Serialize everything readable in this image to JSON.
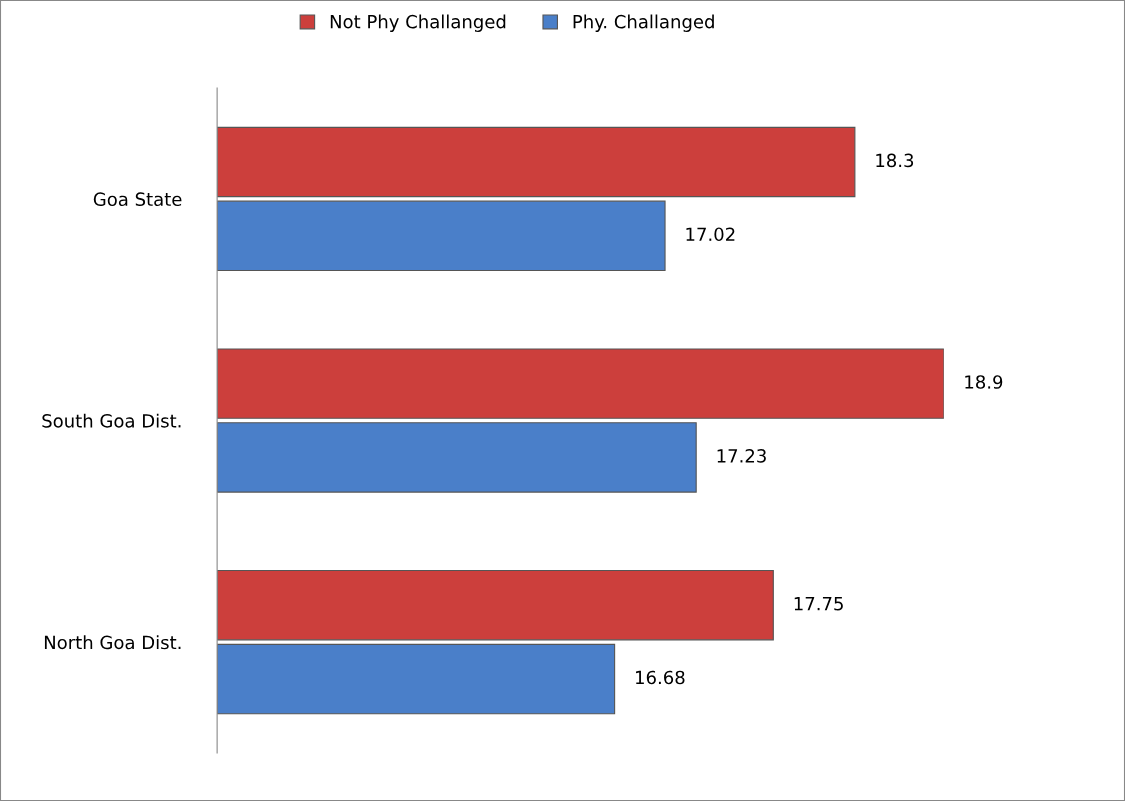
{
  "chart_data": {
    "type": "bar",
    "orientation": "horizontal",
    "categories": [
      "Goa State",
      "South Goa Dist.",
      "North Goa Dist."
    ],
    "series": [
      {
        "name": "Not Phy Challanged",
        "color": "#cc3f3c",
        "values": [
          18.3,
          18.9,
          17.75
        ]
      },
      {
        "name": "Phy. Challanged",
        "color": "#4a7fc9",
        "values": [
          17.02,
          17.23,
          16.68
        ]
      }
    ],
    "xlim": [
      14,
      18.9
    ],
    "tick_labels": "y",
    "data_labels": true,
    "legend": "top",
    "grid": false
  }
}
